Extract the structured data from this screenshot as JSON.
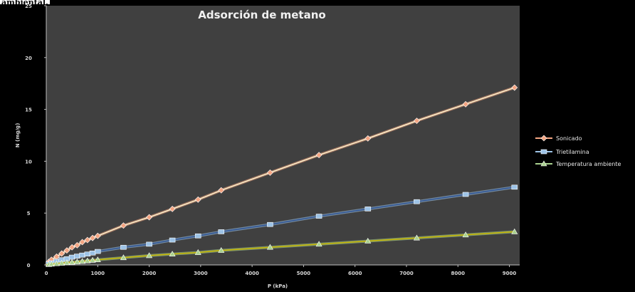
{
  "caption": "ambiental.",
  "chart_data": {
    "type": "line",
    "title": "Adsorción de metano",
    "xlabel": "P (kPa)",
    "ylabel": "N (mg/g)",
    "xlim": [
      0,
      9200
    ],
    "ylim": [
      0,
      25
    ],
    "x_ticks": [
      0,
      1000,
      2000,
      3000,
      4000,
      5000,
      6000,
      7000,
      8000,
      9000
    ],
    "y_ticks": [
      0,
      5,
      10,
      15,
      20,
      25
    ],
    "x_tick_labels": [
      "0",
      "1000",
      "2000",
      "3000",
      "4000",
      "5000",
      "6000",
      "7000",
      "8000",
      "9000"
    ],
    "y_tick_labels": [
      "0",
      "5",
      "10",
      "15",
      "20",
      "25"
    ],
    "grid": false,
    "legend_position": "right",
    "plot_background": "#404040",
    "series": [
      {
        "name": "Sonicado",
        "color": "#f4a582",
        "line_color": "#fff2cc",
        "marker": "diamond",
        "x": [
          50,
          100,
          200,
          300,
          400,
          500,
          600,
          700,
          800,
          900,
          1000,
          1500,
          2000,
          2450,
          2950,
          3400,
          4350,
          5300,
          6250,
          7200,
          8150,
          9100
        ],
        "y": [
          0.3,
          0.5,
          0.8,
          1.1,
          1.4,
          1.7,
          1.9,
          2.2,
          2.4,
          2.6,
          2.8,
          3.8,
          4.6,
          5.4,
          6.3,
          7.2,
          8.9,
          10.6,
          12.2,
          13.9,
          15.5,
          17.1
        ]
      },
      {
        "name": "Trietilamina",
        "color": "#9dc3e6",
        "line_color": "#2f5597",
        "marker": "square",
        "x": [
          50,
          100,
          200,
          300,
          400,
          500,
          600,
          700,
          800,
          900,
          1000,
          1500,
          2000,
          2450,
          2950,
          3400,
          4350,
          5300,
          6250,
          7200,
          8150,
          9100
        ],
        "y": [
          0.1,
          0.2,
          0.35,
          0.5,
          0.6,
          0.75,
          0.85,
          0.95,
          1.05,
          1.15,
          1.3,
          1.7,
          2.0,
          2.4,
          2.8,
          3.2,
          3.9,
          4.7,
          5.4,
          6.1,
          6.8,
          7.5
        ]
      },
      {
        "name": "Temperatura ambiente",
        "color": "#a9d18e",
        "line_color": "#c9b800",
        "marker": "triangle",
        "x": [
          50,
          100,
          200,
          300,
          400,
          500,
          600,
          700,
          800,
          900,
          1000,
          1500,
          2000,
          2450,
          2950,
          3400,
          4350,
          5300,
          6250,
          7200,
          8150,
          9100
        ],
        "y": [
          0.05,
          0.08,
          0.12,
          0.17,
          0.22,
          0.26,
          0.3,
          0.35,
          0.4,
          0.45,
          0.5,
          0.7,
          0.9,
          1.05,
          1.2,
          1.4,
          1.7,
          2.0,
          2.3,
          2.6,
          2.9,
          3.2
        ]
      }
    ]
  }
}
